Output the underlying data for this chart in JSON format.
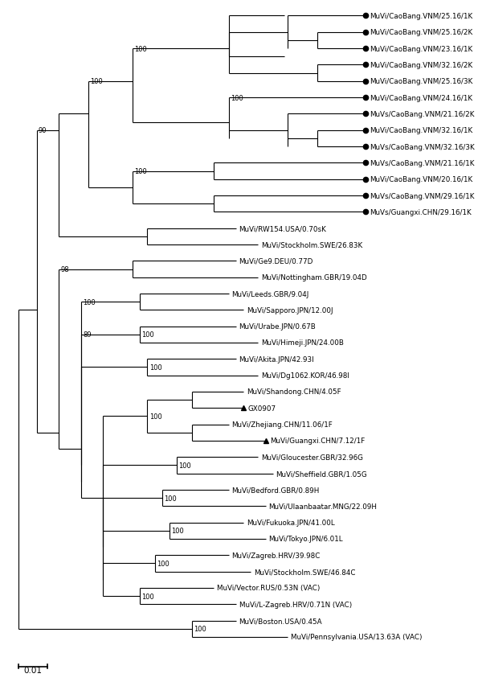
{
  "figsize": [
    6.0,
    8.54
  ],
  "dpi": 100,
  "background": "#ffffff",
  "scale_bar": {
    "label": "0.01"
  },
  "leaves": [
    {
      "name": "MuVi/CaoBang.VNM/25.16/1K",
      "y": 1,
      "marker": "circle"
    },
    {
      "name": "MuVi/CaoBang.VNM/25.16/2K",
      "y": 2,
      "marker": "circle"
    },
    {
      "name": "MuVi/CaoBang.VNM/23.16/1K",
      "y": 3,
      "marker": "circle"
    },
    {
      "name": "MuVi/CaoBang.VNM/32.16/2K",
      "y": 4,
      "marker": "circle"
    },
    {
      "name": "MuVi/CaoBang.VNM/25.16/3K",
      "y": 5,
      "marker": "circle"
    },
    {
      "name": "MuVi/CaoBang.VNM/24.16/1K",
      "y": 6,
      "marker": "circle"
    },
    {
      "name": "MuVs/CaoBang.VNM/21.16/2K",
      "y": 7,
      "marker": "circle"
    },
    {
      "name": "MuVi/CaoBang.VNM/32.16/1K",
      "y": 8,
      "marker": "circle"
    },
    {
      "name": "MuVs/CaoBang.VNM/32.16/3K",
      "y": 9,
      "marker": "circle"
    },
    {
      "name": "MuVs/CaoBang.VNM/21.16/1K",
      "y": 10,
      "marker": "circle"
    },
    {
      "name": "MuVi/CaoBang.VNM/20.16/1K",
      "y": 11,
      "marker": "circle"
    },
    {
      "name": "MuVs/CaoBang.VNM/29.16/1K",
      "y": 12,
      "marker": "circle"
    },
    {
      "name": "MuVs/Guangxi.CHN/29.16/1K",
      "y": 13,
      "marker": "circle"
    },
    {
      "name": "MuVi/RW154.USA/0.70sK",
      "y": 14,
      "marker": "none"
    },
    {
      "name": "MuVi/Stockholm.SWE/26.83K",
      "y": 15,
      "marker": "none"
    },
    {
      "name": "MuVi/Ge9.DEU/0.77D",
      "y": 16,
      "marker": "none"
    },
    {
      "name": "MuVi/Nottingham.GBR/19.04D",
      "y": 17,
      "marker": "none"
    },
    {
      "name": "MuVi/Leeds.GBR/9.04J",
      "y": 18,
      "marker": "none"
    },
    {
      "name": "MuVi/Sapporo.JPN/12.00J",
      "y": 19,
      "marker": "none"
    },
    {
      "name": "MuVi/Urabe.JPN/0.67B",
      "y": 20,
      "marker": "none"
    },
    {
      "name": "MuVi/Himeji.JPN/24.00B",
      "y": 21,
      "marker": "none"
    },
    {
      "name": "MuVi/Akita.JPN/42.93I",
      "y": 22,
      "marker": "none"
    },
    {
      "name": "MuVi/Dg1062.KOR/46.98I",
      "y": 23,
      "marker": "none"
    },
    {
      "name": "MuVi/Shandong.CHN/4.05F",
      "y": 24,
      "marker": "none"
    },
    {
      "name": "GX0907",
      "y": 25,
      "marker": "triangle"
    },
    {
      "name": "MuVi/Zhejiang.CHN/11.06/1F",
      "y": 26,
      "marker": "none"
    },
    {
      "name": "MuVi/Guangxi.CHN/7.12/1F",
      "y": 27,
      "marker": "triangle"
    },
    {
      "name": "MuVi/Gloucester.GBR/32.96G",
      "y": 28,
      "marker": "none"
    },
    {
      "name": "MuVi/Sheffield.GBR/1.05G",
      "y": 29,
      "marker": "none"
    },
    {
      "name": "MuVi/Bedford.GBR/0.89H",
      "y": 30,
      "marker": "none"
    },
    {
      "name": "MuVi/Ulaanbaatar.MNG/22.09H",
      "y": 31,
      "marker": "none"
    },
    {
      "name": "MuVi/Fukuoka.JPN/41.00L",
      "y": 32,
      "marker": "none"
    },
    {
      "name": "MuVi/Tokyo.JPN/6.01L",
      "y": 33,
      "marker": "none"
    },
    {
      "name": "MuVi/Zagreb.HRV/39.98C",
      "y": 34,
      "marker": "none"
    },
    {
      "name": "MuVi/Stockholm.SWE/46.84C",
      "y": 35,
      "marker": "none"
    },
    {
      "name": "MuVi/Vector.RUS/0.53N (VAC)",
      "y": 36,
      "marker": "none"
    },
    {
      "name": "MuVi/L-Zagreb.HRV/0.71N (VAC)",
      "y": 37,
      "marker": "none"
    },
    {
      "name": "MuVi/Boston.USA/0.45A",
      "y": 38,
      "marker": "none"
    },
    {
      "name": "MuVi/Pennsylvania.USA/13.63A (VAC)",
      "y": 39,
      "marker": "none"
    }
  ]
}
